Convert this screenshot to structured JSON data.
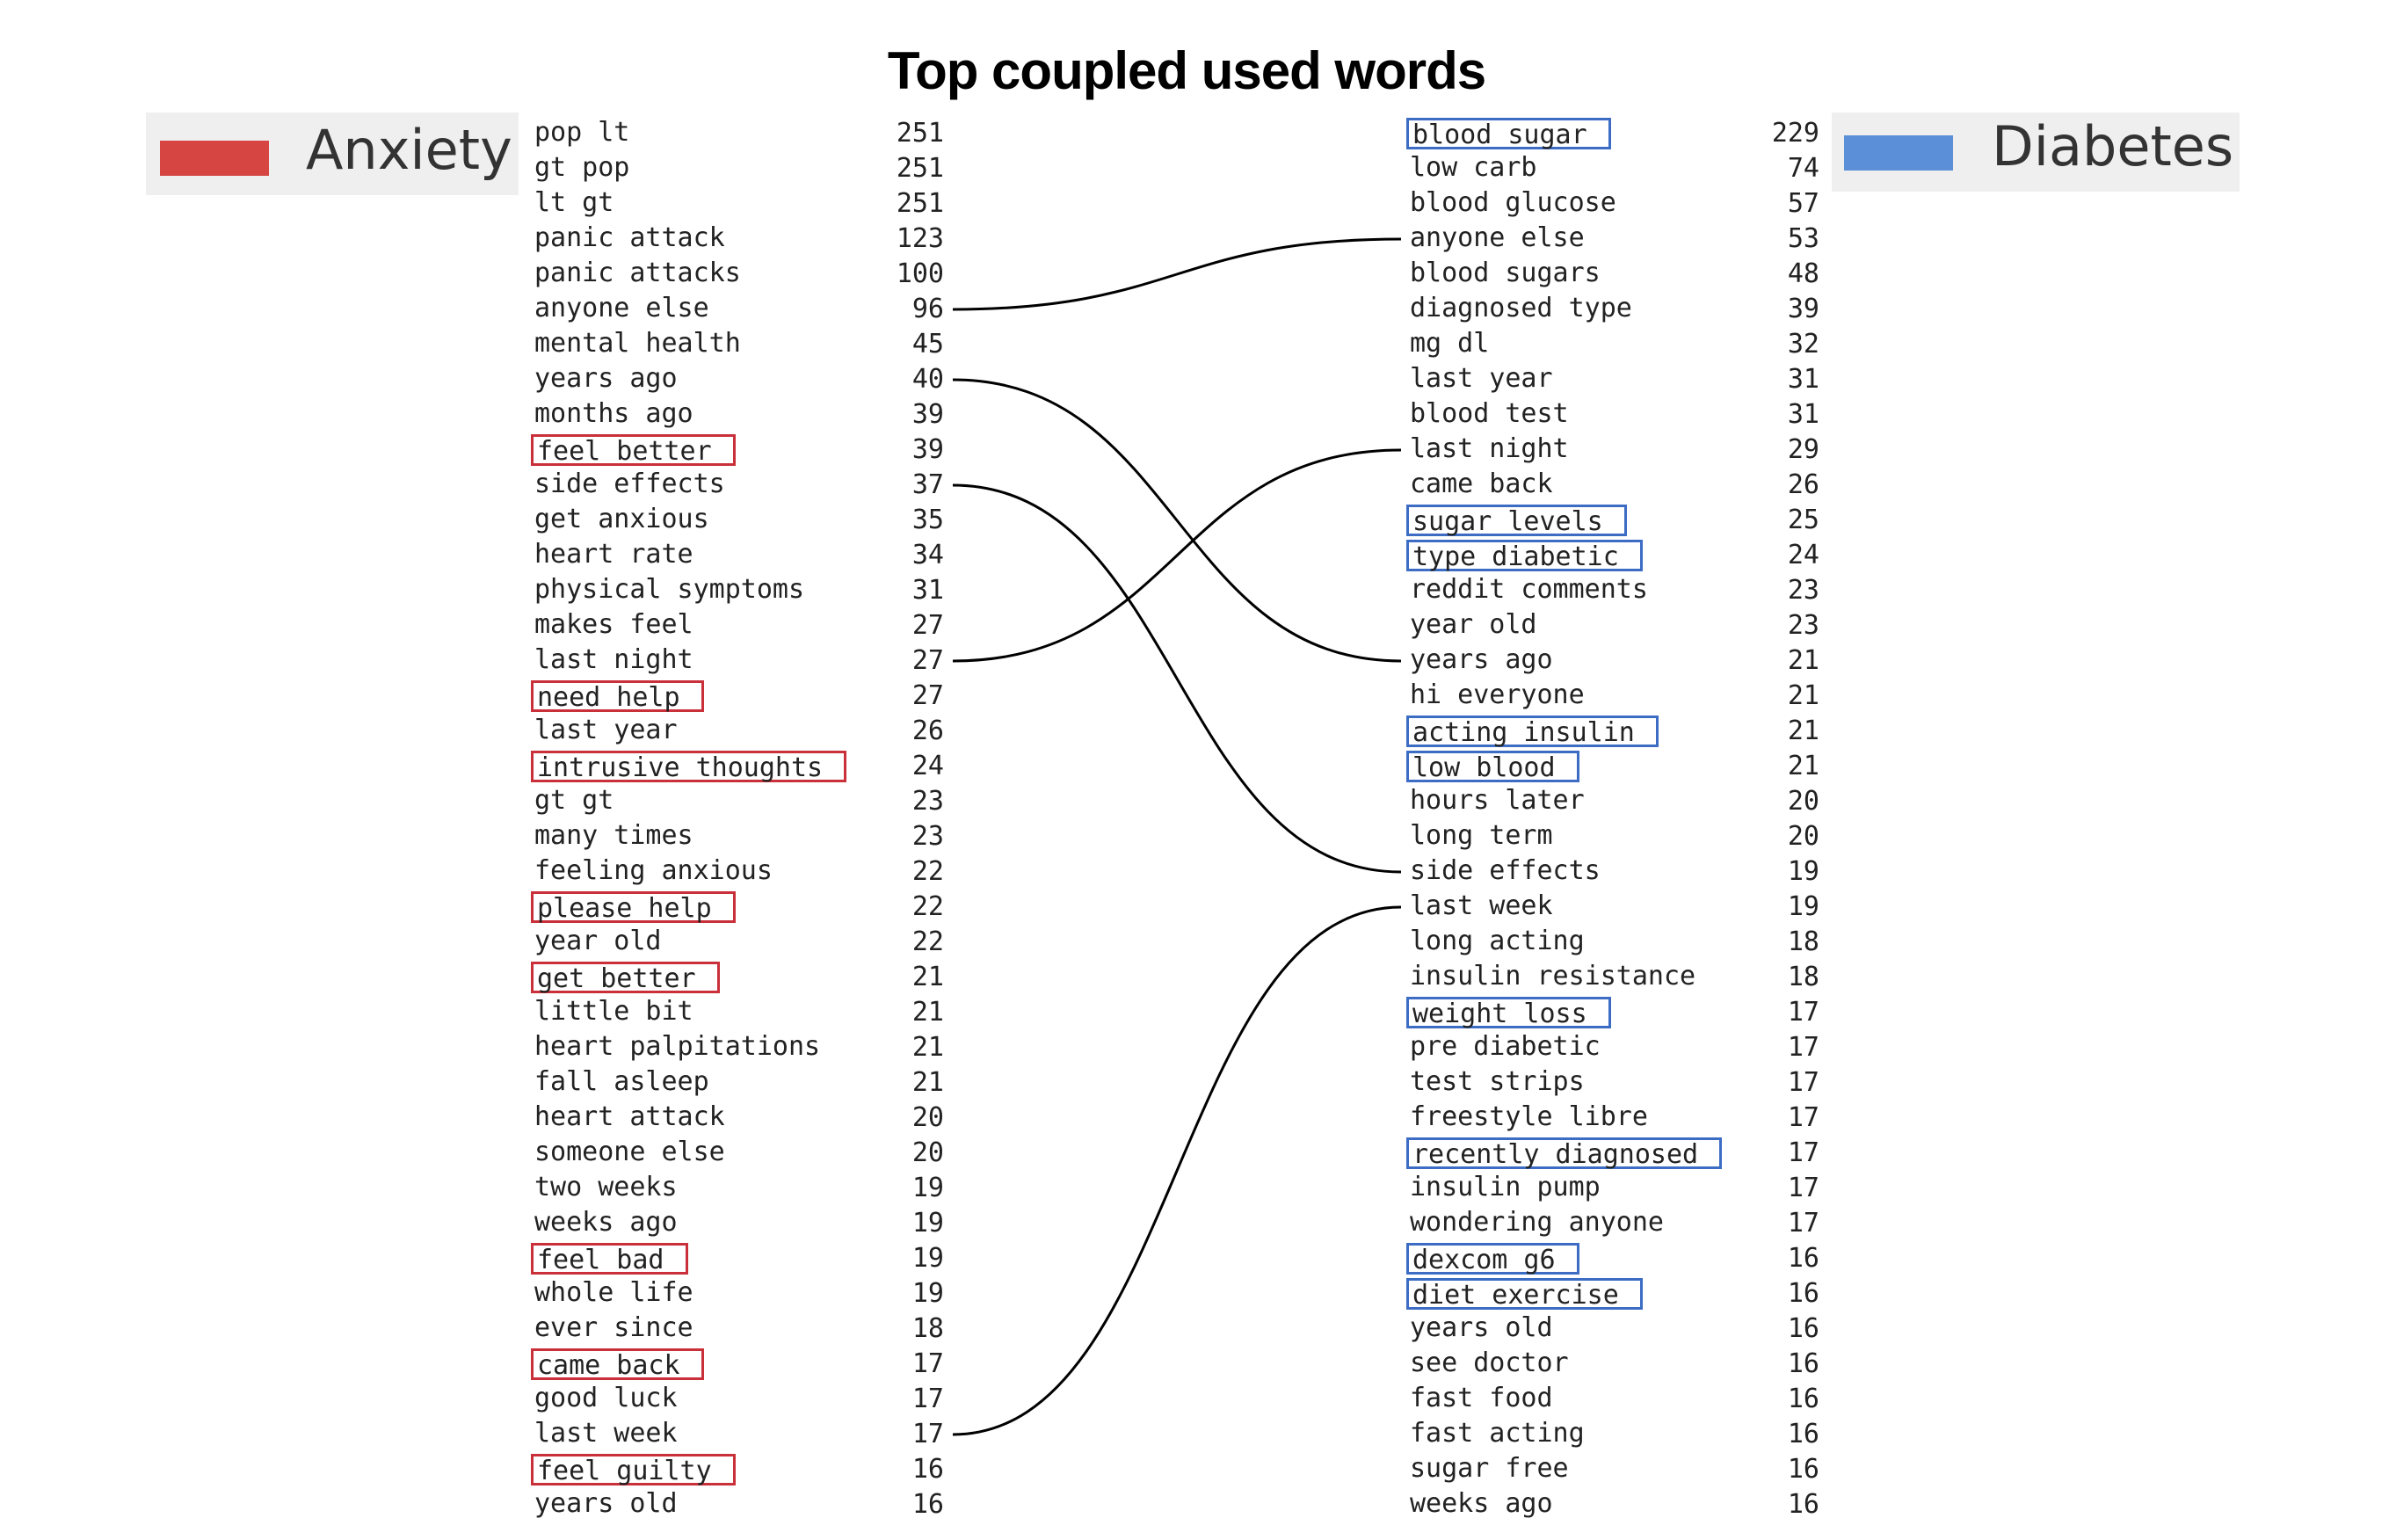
{
  "title": "Top coupled used words",
  "legend": {
    "anxiety": {
      "label": "Anxiety",
      "color": "#d64541"
    },
    "diabetes": {
      "label": "Diabetes",
      "color": "#5b8fd8"
    }
  },
  "colors": {
    "anxiety_box": "#c9303a",
    "diabetes_box": "#3c6cc4",
    "link": "#000000"
  },
  "anxiety": [
    {
      "term": "pop lt",
      "count": 251,
      "highlight": false
    },
    {
      "term": "gt pop",
      "count": 251,
      "highlight": false
    },
    {
      "term": "lt gt",
      "count": 251,
      "highlight": false
    },
    {
      "term": "panic attack",
      "count": 123,
      "highlight": false
    },
    {
      "term": "panic attacks",
      "count": 100,
      "highlight": false
    },
    {
      "term": "anyone else",
      "count": 96,
      "highlight": false
    },
    {
      "term": "mental health",
      "count": 45,
      "highlight": false
    },
    {
      "term": "years ago",
      "count": 40,
      "highlight": false
    },
    {
      "term": "months ago",
      "count": 39,
      "highlight": false
    },
    {
      "term": "feel better",
      "count": 39,
      "highlight": true
    },
    {
      "term": "side effects",
      "count": 37,
      "highlight": false
    },
    {
      "term": "get anxious",
      "count": 35,
      "highlight": false
    },
    {
      "term": "heart rate",
      "count": 34,
      "highlight": false
    },
    {
      "term": "physical symptoms",
      "count": 31,
      "highlight": false
    },
    {
      "term": "makes feel",
      "count": 27,
      "highlight": false
    },
    {
      "term": "last night",
      "count": 27,
      "highlight": false
    },
    {
      "term": "need help",
      "count": 27,
      "highlight": true
    },
    {
      "term": "last year",
      "count": 26,
      "highlight": false
    },
    {
      "term": "intrusive thoughts",
      "count": 24,
      "highlight": true
    },
    {
      "term": "gt gt",
      "count": 23,
      "highlight": false
    },
    {
      "term": "many times",
      "count": 23,
      "highlight": false
    },
    {
      "term": "feeling anxious",
      "count": 22,
      "highlight": false
    },
    {
      "term": "please help",
      "count": 22,
      "highlight": true
    },
    {
      "term": "year old",
      "count": 22,
      "highlight": false
    },
    {
      "term": "get better",
      "count": 21,
      "highlight": true
    },
    {
      "term": "little bit",
      "count": 21,
      "highlight": false
    },
    {
      "term": "heart palpitations",
      "count": 21,
      "highlight": false
    },
    {
      "term": "fall asleep",
      "count": 21,
      "highlight": false
    },
    {
      "term": "heart attack",
      "count": 20,
      "highlight": false
    },
    {
      "term": "someone else",
      "count": 20,
      "highlight": false
    },
    {
      "term": "two weeks",
      "count": 19,
      "highlight": false
    },
    {
      "term": "weeks ago",
      "count": 19,
      "highlight": false
    },
    {
      "term": "feel bad",
      "count": 19,
      "highlight": true
    },
    {
      "term": "whole life",
      "count": 19,
      "highlight": false
    },
    {
      "term": "ever since",
      "count": 18,
      "highlight": false
    },
    {
      "term": "came back",
      "count": 17,
      "highlight": true
    },
    {
      "term": "good luck",
      "count": 17,
      "highlight": false
    },
    {
      "term": "last week",
      "count": 17,
      "highlight": false
    },
    {
      "term": "feel guilty",
      "count": 16,
      "highlight": true
    },
    {
      "term": "years old",
      "count": 16,
      "highlight": false
    }
  ],
  "diabetes": [
    {
      "term": "blood sugar",
      "count": 229,
      "highlight": true
    },
    {
      "term": "low carb",
      "count": 74,
      "highlight": false
    },
    {
      "term": "blood glucose",
      "count": 57,
      "highlight": false
    },
    {
      "term": "anyone else",
      "count": 53,
      "highlight": false
    },
    {
      "term": "blood sugars",
      "count": 48,
      "highlight": false
    },
    {
      "term": "diagnosed type",
      "count": 39,
      "highlight": false
    },
    {
      "term": "mg dl",
      "count": 32,
      "highlight": false
    },
    {
      "term": "last year",
      "count": 31,
      "highlight": false
    },
    {
      "term": "blood test",
      "count": 31,
      "highlight": false
    },
    {
      "term": "last night",
      "count": 29,
      "highlight": false
    },
    {
      "term": "came back",
      "count": 26,
      "highlight": false
    },
    {
      "term": "sugar levels",
      "count": 25,
      "highlight": true
    },
    {
      "term": "type diabetic",
      "count": 24,
      "highlight": true
    },
    {
      "term": "reddit comments",
      "count": 23,
      "highlight": false
    },
    {
      "term": "year old",
      "count": 23,
      "highlight": false
    },
    {
      "term": "years ago",
      "count": 21,
      "highlight": false
    },
    {
      "term": "hi everyone",
      "count": 21,
      "highlight": false
    },
    {
      "term": "acting insulin",
      "count": 21,
      "highlight": true
    },
    {
      "term": "low blood",
      "count": 21,
      "highlight": true
    },
    {
      "term": "hours later",
      "count": 20,
      "highlight": false
    },
    {
      "term": "long term",
      "count": 20,
      "highlight": false
    },
    {
      "term": "side effects",
      "count": 19,
      "highlight": false
    },
    {
      "term": "last week",
      "count": 19,
      "highlight": false
    },
    {
      "term": "long acting",
      "count": 18,
      "highlight": false
    },
    {
      "term": "insulin resistance",
      "count": 18,
      "highlight": false
    },
    {
      "term": "weight loss",
      "count": 17,
      "highlight": true
    },
    {
      "term": "pre diabetic",
      "count": 17,
      "highlight": false
    },
    {
      "term": "test strips",
      "count": 17,
      "highlight": false
    },
    {
      "term": "freestyle libre",
      "count": 17,
      "highlight": false
    },
    {
      "term": "recently diagnosed",
      "count": 17,
      "highlight": true
    },
    {
      "term": "insulin pump",
      "count": 17,
      "highlight": false
    },
    {
      "term": "wondering anyone",
      "count": 17,
      "highlight": false
    },
    {
      "term": "dexcom g6",
      "count": 16,
      "highlight": true
    },
    {
      "term": "diet exercise",
      "count": 16,
      "highlight": true
    },
    {
      "term": "years old",
      "count": 16,
      "highlight": false
    },
    {
      "term": "see doctor",
      "count": 16,
      "highlight": false
    },
    {
      "term": "fast food",
      "count": 16,
      "highlight": false
    },
    {
      "term": "fast acting",
      "count": 16,
      "highlight": false
    },
    {
      "term": "sugar free",
      "count": 16,
      "highlight": false
    },
    {
      "term": "weeks ago",
      "count": 16,
      "highlight": false
    }
  ],
  "links": [
    {
      "from": "anyone else",
      "to": "anyone else"
    },
    {
      "from": "years ago",
      "to": "years ago"
    },
    {
      "from": "side effects",
      "to": "side effects"
    },
    {
      "from": "last night",
      "to": "last night"
    },
    {
      "from": "last week",
      "to": "last week"
    }
  ]
}
